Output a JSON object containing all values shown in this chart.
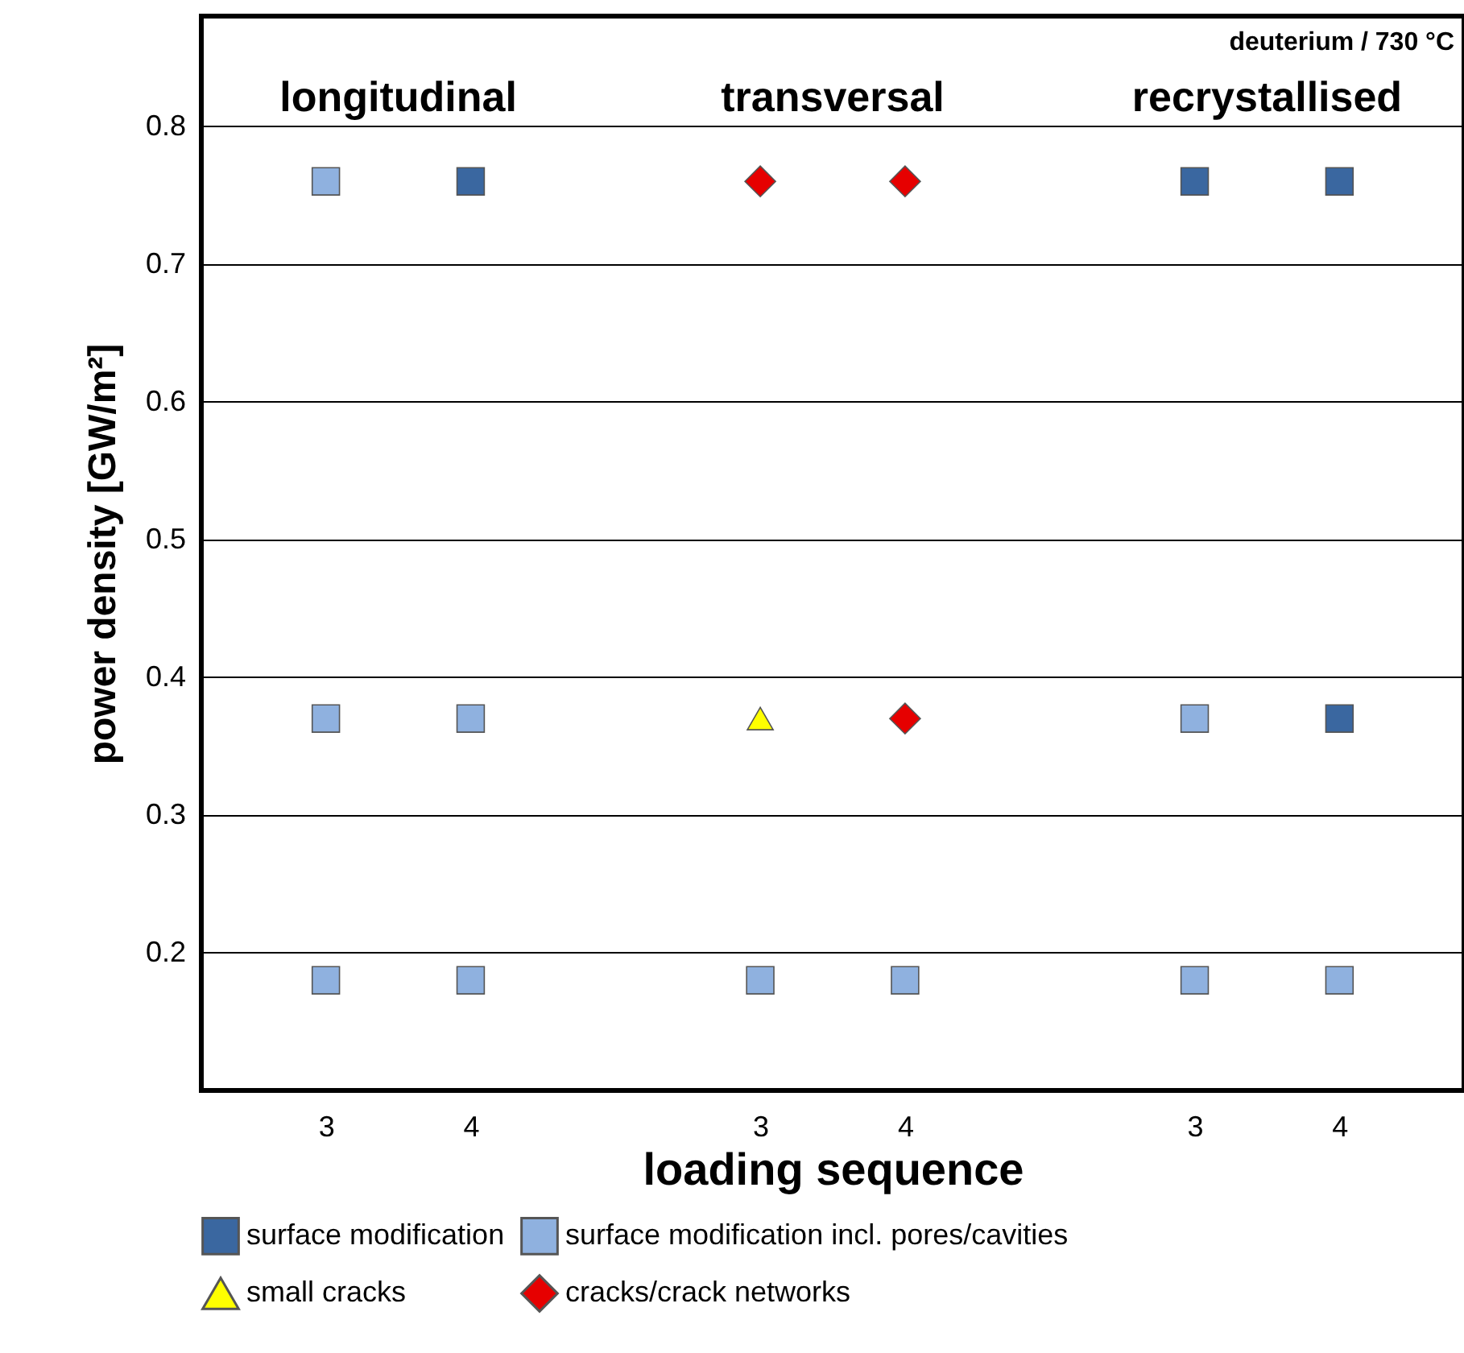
{
  "chart_data": {
    "type": "scatter",
    "xlabel": "loading sequence",
    "ylabel": "power density [GW/m²]",
    "categories": [
      "3",
      "4",
      null,
      "3",
      "4",
      null,
      "3",
      "4"
    ],
    "ylim": [
      0.1,
      0.88
    ],
    "yticks": [
      0.2,
      0.3,
      0.4,
      0.5,
      0.6,
      0.7,
      0.8
    ],
    "grid": "y",
    "legend": "bottom",
    "annotations": [
      "longitudinal",
      "transversal",
      "recrystallised",
      "deuterium / 730 °C"
    ],
    "series": [
      {
        "name": "surface modification",
        "color": "#3a67a0",
        "marker": "square",
        "values": [
          null,
          0.76,
          null,
          null,
          null,
          null,
          0.76,
          0.76
        ]
      },
      {
        "color": "#3a67a0",
        "marker": "square",
        "values": [
          null,
          null,
          null,
          null,
          null,
          null,
          null,
          0.37
        ]
      },
      {
        "name": "surface modification incl. pores/cavities",
        "color": "#8fb1df",
        "marker": "square",
        "values": [
          0.76,
          null,
          null,
          null,
          null,
          null,
          null,
          null
        ]
      },
      {
        "color": "#8fb1df",
        "marker": "square",
        "values": [
          0.37,
          0.37,
          null,
          null,
          null,
          null,
          0.37,
          null
        ]
      },
      {
        "color": "#8fb1df",
        "marker": "square",
        "values": [
          0.18,
          0.18,
          null,
          0.18,
          0.18,
          null,
          0.18,
          0.18
        ]
      },
      {
        "name": "small cracks",
        "color": "#ffff00",
        "marker": "triangle",
        "values": [
          null,
          null,
          null,
          0.37,
          null,
          null,
          null,
          null
        ]
      },
      {
        "name": "cracks/crack networks",
        "color": "#e60000",
        "marker": "diamond",
        "values": [
          null,
          null,
          null,
          0.76,
          0.76,
          null,
          null,
          null
        ]
      },
      {
        "color": "#e60000",
        "marker": "diamond",
        "values": [
          null,
          null,
          null,
          null,
          0.37,
          null,
          null,
          null
        ]
      }
    ]
  }
}
